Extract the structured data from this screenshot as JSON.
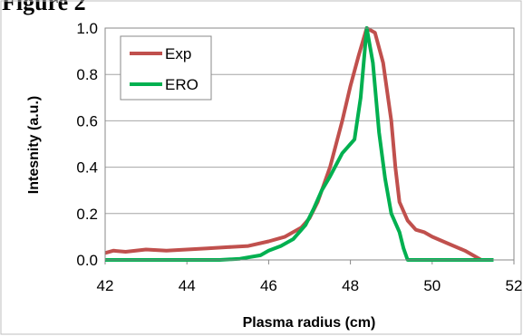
{
  "figure_label": "Figure 2",
  "chart_data": {
    "type": "line",
    "title": "",
    "xlabel": "Plasma radius (cm)",
    "ylabel": "Intesnity (a.u.)",
    "xlim": [
      42,
      52
    ],
    "ylim": [
      0,
      1.0
    ],
    "x_ticks": [
      "42",
      "44",
      "46",
      "48",
      "50",
      "52"
    ],
    "y_ticks": [
      "0.0",
      "0.2",
      "0.4",
      "0.6",
      "0.8",
      "1.0"
    ],
    "grid": "horizontal",
    "legend": "top-left",
    "series": [
      {
        "name": "Exp",
        "color": "#c0504d",
        "points": [
          [
            42.0,
            0.03
          ],
          [
            42.2,
            0.04
          ],
          [
            42.5,
            0.035
          ],
          [
            43.0,
            0.045
          ],
          [
            43.5,
            0.04
          ],
          [
            44.0,
            0.045
          ],
          [
            44.5,
            0.05
          ],
          [
            45.0,
            0.055
          ],
          [
            45.5,
            0.06
          ],
          [
            46.0,
            0.08
          ],
          [
            46.4,
            0.1
          ],
          [
            46.8,
            0.14
          ],
          [
            47.0,
            0.18
          ],
          [
            47.2,
            0.25
          ],
          [
            47.5,
            0.4
          ],
          [
            47.8,
            0.6
          ],
          [
            48.0,
            0.75
          ],
          [
            48.2,
            0.88
          ],
          [
            48.4,
            1.0
          ],
          [
            48.6,
            0.98
          ],
          [
            48.8,
            0.85
          ],
          [
            49.0,
            0.6
          ],
          [
            49.1,
            0.4
          ],
          [
            49.2,
            0.25
          ],
          [
            49.4,
            0.17
          ],
          [
            49.6,
            0.13
          ],
          [
            49.8,
            0.12
          ],
          [
            50.0,
            0.1
          ],
          [
            50.4,
            0.07
          ],
          [
            50.8,
            0.04
          ],
          [
            51.2,
            0.0
          ]
        ]
      },
      {
        "name": "ERO",
        "color": "#00b050",
        "points": [
          [
            42.0,
            0.0
          ],
          [
            44.8,
            0.0
          ],
          [
            45.3,
            0.005
          ],
          [
            45.8,
            0.02
          ],
          [
            46.0,
            0.04
          ],
          [
            46.3,
            0.06
          ],
          [
            46.6,
            0.09
          ],
          [
            46.9,
            0.15
          ],
          [
            47.1,
            0.22
          ],
          [
            47.3,
            0.3
          ],
          [
            47.5,
            0.36
          ],
          [
            47.8,
            0.46
          ],
          [
            48.0,
            0.5
          ],
          [
            48.1,
            0.52
          ],
          [
            48.25,
            0.7
          ],
          [
            48.4,
            1.0
          ],
          [
            48.55,
            0.85
          ],
          [
            48.7,
            0.55
          ],
          [
            48.85,
            0.35
          ],
          [
            49.0,
            0.2
          ],
          [
            49.2,
            0.12
          ],
          [
            49.3,
            0.05
          ],
          [
            49.4,
            0.0
          ],
          [
            51.5,
            0.0
          ]
        ]
      }
    ]
  }
}
